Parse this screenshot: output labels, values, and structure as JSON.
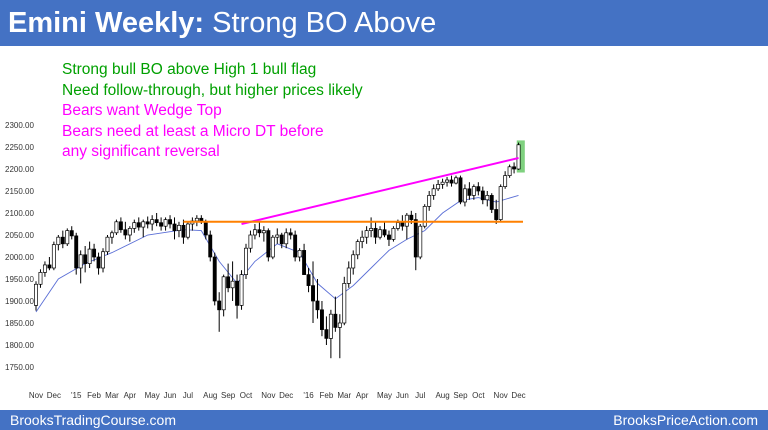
{
  "header": {
    "title_bold": "Emini Weekly:",
    "title_rest": " Strong BO Above"
  },
  "annotations": [
    {
      "text": "Strong bull BO above High 1 bull flag",
      "color": "#00a000"
    },
    {
      "text": "Need follow-through, but higher prices likely",
      "color": "#00a000"
    },
    {
      "text": "Bears want Wedge Top",
      "color": "#ff00ff"
    },
    {
      "text": "Bears need at least a Micro DT before",
      "color": "#ff00ff"
    },
    {
      "text": "any significant reversal",
      "color": "#ff00ff"
    }
  ],
  "footer": {
    "left": "BrooksTradingCourse.com",
    "right": "BrooksPriceAction.com"
  },
  "colors": {
    "header_bg": "#4472c4",
    "bull_bar": "#ffffff",
    "bear_bar": "#000000",
    "moving_average": "#5b6fd6",
    "wedge_line": "#ff00ff",
    "support_line": "#ff8000",
    "breakout_box": "#7fd17f"
  },
  "chart_data": {
    "type": "candlestick",
    "title": "Emini Weekly: Strong BO Above",
    "y_ticks": [
      "2300.00",
      "2250.00",
      "2200.00",
      "2150.00",
      "2100.00",
      "2050.00",
      "2000.00",
      "1950.00",
      "1900.00",
      "1850.00",
      "1800.00",
      "1750.00"
    ],
    "ylim": [
      1750,
      2300
    ],
    "x_ticks": [
      {
        "label": "Nov",
        "week": 1
      },
      {
        "label": "Dec",
        "week": 5
      },
      {
        "label": "'15",
        "week": 10
      },
      {
        "label": "Feb",
        "week": 14
      },
      {
        "label": "Mar",
        "week": 18
      },
      {
        "label": "Apr",
        "week": 22
      },
      {
        "label": "May",
        "week": 27
      },
      {
        "label": "Jun",
        "week": 31
      },
      {
        "label": "Jul",
        "week": 35
      },
      {
        "label": "Aug",
        "week": 40
      },
      {
        "label": "Sep",
        "week": 44
      },
      {
        "label": "Oct",
        "week": 48
      },
      {
        "label": "Nov",
        "week": 53
      },
      {
        "label": "Dec",
        "week": 57
      },
      {
        "label": "'16",
        "week": 62
      },
      {
        "label": "Feb",
        "week": 66
      },
      {
        "label": "Mar",
        "week": 70
      },
      {
        "label": "Apr",
        "week": 74
      },
      {
        "label": "May",
        "week": 79
      },
      {
        "label": "Jun",
        "week": 83
      },
      {
        "label": "Jul",
        "week": 87
      },
      {
        "label": "Aug",
        "week": 92
      },
      {
        "label": "Sep",
        "week": 96
      },
      {
        "label": "Oct",
        "week": 100
      },
      {
        "label": "Nov",
        "week": 105
      },
      {
        "label": "Dec",
        "week": 109
      }
    ],
    "bars": [
      {
        "o": 1890,
        "h": 1945,
        "l": 1878,
        "c": 1938
      },
      {
        "o": 1938,
        "h": 1972,
        "l": 1930,
        "c": 1965
      },
      {
        "o": 1965,
        "h": 1990,
        "l": 1955,
        "c": 1982
      },
      {
        "o": 1982,
        "h": 2000,
        "l": 1970,
        "c": 1975
      },
      {
        "o": 1975,
        "h": 2035,
        "l": 1970,
        "c": 2028
      },
      {
        "o": 2028,
        "h": 2050,
        "l": 2015,
        "c": 2045
      },
      {
        "o": 2045,
        "h": 2060,
        "l": 2020,
        "c": 2030
      },
      {
        "o": 2030,
        "h": 2065,
        "l": 2025,
        "c": 2060
      },
      {
        "o": 2060,
        "h": 2070,
        "l": 2040,
        "c": 2048
      },
      {
        "o": 2048,
        "h": 2055,
        "l": 1960,
        "c": 1975
      },
      {
        "o": 1975,
        "h": 2015,
        "l": 1940,
        "c": 2005
      },
      {
        "o": 2005,
        "h": 2025,
        "l": 1965,
        "c": 1985
      },
      {
        "o": 1985,
        "h": 2035,
        "l": 1975,
        "c": 2018
      },
      {
        "o": 2018,
        "h": 2030,
        "l": 1990,
        "c": 2000
      },
      {
        "o": 2000,
        "h": 2010,
        "l": 1960,
        "c": 1975
      },
      {
        "o": 1975,
        "h": 2020,
        "l": 1965,
        "c": 2012
      },
      {
        "o": 2012,
        "h": 2050,
        "l": 2005,
        "c": 2045
      },
      {
        "o": 2045,
        "h": 2060,
        "l": 2030,
        "c": 2055
      },
      {
        "o": 2055,
        "h": 2085,
        "l": 2050,
        "c": 2080
      },
      {
        "o": 2080,
        "h": 2090,
        "l": 2055,
        "c": 2062
      },
      {
        "o": 2062,
        "h": 2080,
        "l": 2040,
        "c": 2050
      },
      {
        "o": 2050,
        "h": 2070,
        "l": 2035,
        "c": 2065
      },
      {
        "o": 2065,
        "h": 2085,
        "l": 2055,
        "c": 2078
      },
      {
        "o": 2078,
        "h": 2090,
        "l": 2060,
        "c": 2068
      },
      {
        "o": 2068,
        "h": 2085,
        "l": 2045,
        "c": 2080
      },
      {
        "o": 2080,
        "h": 2092,
        "l": 2065,
        "c": 2075
      },
      {
        "o": 2075,
        "h": 2095,
        "l": 2060,
        "c": 2085
      },
      {
        "o": 2085,
        "h": 2100,
        "l": 2070,
        "c": 2078
      },
      {
        "o": 2078,
        "h": 2090,
        "l": 2060,
        "c": 2070
      },
      {
        "o": 2070,
        "h": 2090,
        "l": 2060,
        "c": 2085
      },
      {
        "o": 2085,
        "h": 2095,
        "l": 2065,
        "c": 2075
      },
      {
        "o": 2075,
        "h": 2090,
        "l": 2040,
        "c": 2060
      },
      {
        "o": 2060,
        "h": 2080,
        "l": 2045,
        "c": 2072
      },
      {
        "o": 2072,
        "h": 2085,
        "l": 2030,
        "c": 2045
      },
      {
        "o": 2045,
        "h": 2080,
        "l": 2040,
        "c": 2075
      },
      {
        "o": 2075,
        "h": 2090,
        "l": 2060,
        "c": 2082
      },
      {
        "o": 2082,
        "h": 2095,
        "l": 2070,
        "c": 2088
      },
      {
        "o": 2088,
        "h": 2095,
        "l": 2075,
        "c": 2080
      },
      {
        "o": 2080,
        "h": 2085,
        "l": 2040,
        "c": 2050
      },
      {
        "o": 2050,
        "h": 2060,
        "l": 1990,
        "c": 2000
      },
      {
        "o": 2000,
        "h": 2010,
        "l": 1890,
        "c": 1900
      },
      {
        "o": 1900,
        "h": 1920,
        "l": 1830,
        "c": 1880
      },
      {
        "o": 1880,
        "h": 1960,
        "l": 1865,
        "c": 1955
      },
      {
        "o": 1955,
        "h": 1985,
        "l": 1920,
        "c": 1930
      },
      {
        "o": 1930,
        "h": 1990,
        "l": 1900,
        "c": 1945
      },
      {
        "o": 1945,
        "h": 1960,
        "l": 1860,
        "c": 1890
      },
      {
        "o": 1890,
        "h": 1970,
        "l": 1880,
        "c": 1960
      },
      {
        "o": 1960,
        "h": 2030,
        "l": 1950,
        "c": 2020
      },
      {
        "o": 2020,
        "h": 2060,
        "l": 2010,
        "c": 2050
      },
      {
        "o": 2050,
        "h": 2075,
        "l": 2040,
        "c": 2062
      },
      {
        "o": 2062,
        "h": 2080,
        "l": 2045,
        "c": 2055
      },
      {
        "o": 2055,
        "h": 2070,
        "l": 2035,
        "c": 2060
      },
      {
        "o": 2060,
        "h": 2065,
        "l": 1990,
        "c": 2000
      },
      {
        "o": 2000,
        "h": 2050,
        "l": 1995,
        "c": 2045
      },
      {
        "o": 2045,
        "h": 2065,
        "l": 2030,
        "c": 2050
      },
      {
        "o": 2050,
        "h": 2055,
        "l": 2020,
        "c": 2030
      },
      {
        "o": 2030,
        "h": 2065,
        "l": 2020,
        "c": 2055
      },
      {
        "o": 2055,
        "h": 2065,
        "l": 2040,
        "c": 2050
      },
      {
        "o": 2050,
        "h": 2060,
        "l": 1990,
        "c": 2000
      },
      {
        "o": 2000,
        "h": 2020,
        "l": 1990,
        "c": 2015
      },
      {
        "o": 2015,
        "h": 2030,
        "l": 1960,
        "c": 1960
      },
      {
        "o": 1960,
        "h": 1975,
        "l": 1920,
        "c": 1935
      },
      {
        "o": 1935,
        "h": 1990,
        "l": 1850,
        "c": 1900
      },
      {
        "o": 1900,
        "h": 1950,
        "l": 1860,
        "c": 1880
      },
      {
        "o": 1880,
        "h": 1900,
        "l": 1820,
        "c": 1835
      },
      {
        "o": 1835,
        "h": 1865,
        "l": 1800,
        "c": 1815
      },
      {
        "o": 1815,
        "h": 1880,
        "l": 1770,
        "c": 1870
      },
      {
        "o": 1870,
        "h": 1910,
        "l": 1830,
        "c": 1840
      },
      {
        "o": 1840,
        "h": 1870,
        "l": 1770,
        "c": 1850
      },
      {
        "o": 1850,
        "h": 1955,
        "l": 1845,
        "c": 1940
      },
      {
        "o": 1940,
        "h": 1990,
        "l": 1930,
        "c": 1975
      },
      {
        "o": 1975,
        "h": 2015,
        "l": 1960,
        "c": 2005
      },
      {
        "o": 2005,
        "h": 2040,
        "l": 1995,
        "c": 2035
      },
      {
        "o": 2035,
        "h": 2060,
        "l": 2020,
        "c": 2045
      },
      {
        "o": 2045,
        "h": 2070,
        "l": 2030,
        "c": 2060
      },
      {
        "o": 2060,
        "h": 2090,
        "l": 2045,
        "c": 2065
      },
      {
        "o": 2065,
        "h": 2080,
        "l": 2030,
        "c": 2045
      },
      {
        "o": 2045,
        "h": 2070,
        "l": 2040,
        "c": 2062
      },
      {
        "o": 2062,
        "h": 2080,
        "l": 2045,
        "c": 2050
      },
      {
        "o": 2050,
        "h": 2060,
        "l": 2025,
        "c": 2040
      },
      {
        "o": 2040,
        "h": 2070,
        "l": 2035,
        "c": 2065
      },
      {
        "o": 2065,
        "h": 2085,
        "l": 2060,
        "c": 2078
      },
      {
        "o": 2078,
        "h": 2095,
        "l": 2060,
        "c": 2070
      },
      {
        "o": 2070,
        "h": 2100,
        "l": 2040,
        "c": 2095
      },
      {
        "o": 2095,
        "h": 2105,
        "l": 2075,
        "c": 2085
      },
      {
        "o": 2085,
        "h": 2100,
        "l": 1970,
        "c": 2000
      },
      {
        "o": 2000,
        "h": 2075,
        "l": 1995,
        "c": 2070
      },
      {
        "o": 2070,
        "h": 2120,
        "l": 2065,
        "c": 2115
      },
      {
        "o": 2115,
        "h": 2150,
        "l": 2105,
        "c": 2140
      },
      {
        "o": 2140,
        "h": 2165,
        "l": 2130,
        "c": 2155
      },
      {
        "o": 2155,
        "h": 2175,
        "l": 2150,
        "c": 2165
      },
      {
        "o": 2165,
        "h": 2178,
        "l": 2155,
        "c": 2170
      },
      {
        "o": 2170,
        "h": 2182,
        "l": 2160,
        "c": 2175
      },
      {
        "o": 2175,
        "h": 2185,
        "l": 2160,
        "c": 2168
      },
      {
        "o": 2168,
        "h": 2185,
        "l": 2165,
        "c": 2180
      },
      {
        "o": 2180,
        "h": 2185,
        "l": 2120,
        "c": 2125
      },
      {
        "o": 2125,
        "h": 2165,
        "l": 2115,
        "c": 2155
      },
      {
        "o": 2155,
        "h": 2170,
        "l": 2130,
        "c": 2140
      },
      {
        "o": 2140,
        "h": 2165,
        "l": 2130,
        "c": 2160
      },
      {
        "o": 2160,
        "h": 2170,
        "l": 2140,
        "c": 2150
      },
      {
        "o": 2150,
        "h": 2160,
        "l": 2120,
        "c": 2130
      },
      {
        "o": 2130,
        "h": 2150,
        "l": 2115,
        "c": 2140
      },
      {
        "o": 2140,
        "h": 2145,
        "l": 2100,
        "c": 2108
      },
      {
        "o": 2108,
        "h": 2130,
        "l": 2075,
        "c": 2085
      },
      {
        "o": 2085,
        "h": 2165,
        "l": 2080,
        "c": 2160
      },
      {
        "o": 2160,
        "h": 2195,
        "l": 2155,
        "c": 2185
      },
      {
        "o": 2185,
        "h": 2210,
        "l": 2180,
        "c": 2205
      },
      {
        "o": 2205,
        "h": 2215,
        "l": 2190,
        "c": 2200
      },
      {
        "o": 2200,
        "h": 2260,
        "l": 2198,
        "c": 2255
      }
    ],
    "moving_average": [
      {
        "week": 1,
        "v": 1875
      },
      {
        "week": 6,
        "v": 1950
      },
      {
        "week": 12,
        "v": 1985
      },
      {
        "week": 18,
        "v": 2010
      },
      {
        "week": 26,
        "v": 2050
      },
      {
        "week": 34,
        "v": 2062
      },
      {
        "week": 38,
        "v": 2060
      },
      {
        "week": 42,
        "v": 1990
      },
      {
        "week": 46,
        "v": 1940
      },
      {
        "week": 50,
        "v": 1990
      },
      {
        "week": 55,
        "v": 2030
      },
      {
        "week": 60,
        "v": 2010
      },
      {
        "week": 64,
        "v": 1940
      },
      {
        "week": 68,
        "v": 1905
      },
      {
        "week": 72,
        "v": 1935
      },
      {
        "week": 76,
        "v": 1975
      },
      {
        "week": 80,
        "v": 2015
      },
      {
        "week": 84,
        "v": 2040
      },
      {
        "week": 88,
        "v": 2060
      },
      {
        "week": 92,
        "v": 2100
      },
      {
        "week": 96,
        "v": 2128
      },
      {
        "week": 100,
        "v": 2135
      },
      {
        "week": 104,
        "v": 2125
      },
      {
        "week": 109,
        "v": 2140
      }
    ],
    "lines": [
      {
        "name": "wedge",
        "from": {
          "week": 47,
          "v": 2075
        },
        "to": {
          "week": 109,
          "v": 2225
        }
      },
      {
        "name": "support",
        "from": {
          "week": 34,
          "v": 2080
        },
        "to": {
          "week": 110,
          "v": 2080
        }
      }
    ],
    "breakout_box": {
      "week_from": 108.6,
      "week_to": 110.4,
      "low": 2192,
      "high": 2265
    }
  }
}
